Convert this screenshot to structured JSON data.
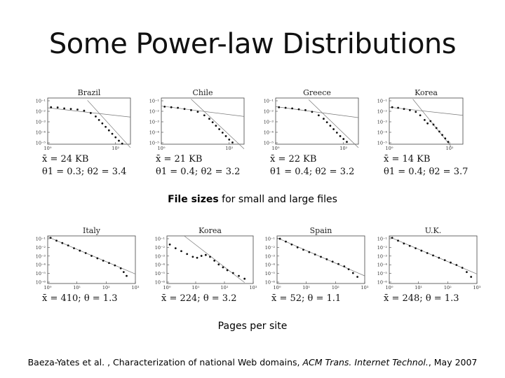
{
  "slide": {
    "title": "Some Power-law Distributions",
    "caption_top_bold": "File sizes",
    "caption_top_rest": " for small and large files",
    "caption_bottom": "Pages per site",
    "citation": {
      "authors": "Baeza-Yates et al. , Characterization of national Web domains, ",
      "journal": "ACM Trans. Internet Technol.",
      "date": ", May 2007"
    }
  },
  "chart_data": [
    {
      "type": "scatter",
      "scale": "log-log",
      "title": "Brazil",
      "stat_line1": "x̄ = 24 KB",
      "stat_line2": "θ1 = 0.3; θ2 = 3.4",
      "xticks": [
        "10⁰",
        "10²"
      ],
      "yticks": [
        "10⁻¹",
        "10⁻²",
        "10⁻³",
        "10⁻⁴",
        "10⁻⁵"
      ],
      "xlim": [
        0,
        2.5
      ],
      "ylim": [
        -5,
        -1
      ],
      "fit_lines": [
        {
          "x0": 0,
          "y0": -1.85,
          "x1": 2.5,
          "y1": -2.65
        },
        {
          "x0": 1.2,
          "y0": -1.2,
          "x1": 2.5,
          "y1": -5.3
        }
      ],
      "points": [
        [
          0.1,
          -1.8
        ],
        [
          0.3,
          -1.82
        ],
        [
          0.5,
          -1.9
        ],
        [
          0.7,
          -1.95
        ],
        [
          0.9,
          -2.0
        ],
        [
          1.1,
          -2.1
        ],
        [
          1.3,
          -2.3
        ],
        [
          1.45,
          -2.6
        ],
        [
          1.55,
          -2.9
        ],
        [
          1.65,
          -3.2
        ],
        [
          1.75,
          -3.5
        ],
        [
          1.85,
          -3.8
        ],
        [
          1.95,
          -4.1
        ],
        [
          2.05,
          -4.4
        ],
        [
          2.15,
          -4.7
        ],
        [
          2.25,
          -4.95
        ]
      ]
    },
    {
      "type": "scatter",
      "scale": "log-log",
      "title": "Chile",
      "stat_line1": "x̄ = 21 KB",
      "stat_line2": "θ1 = 0.4; θ2 = 3.2",
      "xticks": [
        "10⁰",
        "10²"
      ],
      "yticks": [
        "10⁻¹",
        "10⁻²",
        "10⁻³",
        "10⁻⁴",
        "10⁻⁵"
      ],
      "xlim": [
        0,
        2.5
      ],
      "ylim": [
        -5,
        -1
      ],
      "fit_lines": [
        {
          "x0": 0,
          "y0": -1.7,
          "x1": 2.5,
          "y1": -2.6
        },
        {
          "x0": 0.9,
          "y0": -1.1,
          "x1": 2.5,
          "y1": -5.4
        }
      ],
      "points": [
        [
          0.1,
          -1.75
        ],
        [
          0.3,
          -1.8
        ],
        [
          0.5,
          -1.85
        ],
        [
          0.7,
          -1.95
        ],
        [
          0.9,
          -2.05
        ],
        [
          1.1,
          -2.2
        ],
        [
          1.3,
          -2.5
        ],
        [
          1.45,
          -2.8
        ],
        [
          1.55,
          -3.1
        ],
        [
          1.65,
          -3.4
        ],
        [
          1.75,
          -3.7
        ],
        [
          1.85,
          -4.0
        ],
        [
          1.95,
          -4.3
        ],
        [
          2.05,
          -4.6
        ],
        [
          2.15,
          -4.85
        ]
      ]
    },
    {
      "type": "scatter",
      "scale": "log-log",
      "title": "Greece",
      "stat_line1": "x̄ = 22 KB",
      "stat_line2": "θ1 = 0.4; θ2 = 3.2",
      "xticks": [
        "10⁰",
        "10²"
      ],
      "yticks": [
        "10⁻¹",
        "10⁻²",
        "10⁻³",
        "10⁻⁴",
        "10⁻⁵"
      ],
      "xlim": [
        0,
        2.5
      ],
      "ylim": [
        -5,
        -1
      ],
      "fit_lines": [
        {
          "x0": 0,
          "y0": -1.75,
          "x1": 2.5,
          "y1": -2.7
        },
        {
          "x0": 1.0,
          "y0": -1.15,
          "x1": 2.5,
          "y1": -5.3
        }
      ],
      "points": [
        [
          0.1,
          -1.8
        ],
        [
          0.3,
          -1.85
        ],
        [
          0.5,
          -1.9
        ],
        [
          0.7,
          -1.98
        ],
        [
          0.9,
          -2.05
        ],
        [
          1.1,
          -2.2
        ],
        [
          1.3,
          -2.5
        ],
        [
          1.45,
          -2.8
        ],
        [
          1.55,
          -3.1
        ],
        [
          1.65,
          -3.4
        ],
        [
          1.75,
          -3.7
        ],
        [
          1.85,
          -4.0
        ],
        [
          1.95,
          -4.3
        ],
        [
          2.05,
          -4.55
        ],
        [
          2.15,
          -4.8
        ]
      ]
    },
    {
      "type": "scatter",
      "scale": "log-log",
      "title": "Korea",
      "stat_line1": "x̄ = 14 KB",
      "stat_line2": "θ1 = 0.4; θ2 = 3.7",
      "xticks": [
        "10⁰",
        "10²"
      ],
      "yticks": [
        "10⁻¹",
        "10⁻²",
        "10⁻³",
        "10⁻⁴",
        "10⁻⁵"
      ],
      "xlim": [
        0,
        2.5
      ],
      "ylim": [
        -5,
        -1
      ],
      "fit_lines": [
        {
          "x0": 0,
          "y0": -1.8,
          "x1": 2.5,
          "y1": -2.5
        },
        {
          "x0": 0.8,
          "y0": -1.1,
          "x1": 2.1,
          "y1": -5.2
        }
      ],
      "points": [
        [
          0.1,
          -1.8
        ],
        [
          0.3,
          -1.85
        ],
        [
          0.5,
          -1.95
        ],
        [
          0.7,
          -2.05
        ],
        [
          0.9,
          -2.2
        ],
        [
          1.05,
          -2.5
        ],
        [
          1.2,
          -2.9
        ],
        [
          1.3,
          -3.2
        ],
        [
          1.4,
          -3.0
        ],
        [
          1.5,
          -3.3
        ],
        [
          1.6,
          -3.6
        ],
        [
          1.7,
          -3.9
        ],
        [
          1.8,
          -4.2
        ],
        [
          1.9,
          -4.5
        ],
        [
          2.0,
          -4.8
        ]
      ]
    },
    {
      "type": "scatter",
      "scale": "log-log",
      "title": "Italy",
      "stat_line1": "x̄ = 410; θ = 1.3",
      "xticks": [
        "10⁰",
        "10¹",
        "10²",
        "10³"
      ],
      "yticks": [
        "10⁻¹",
        "10⁻²",
        "10⁻³",
        "10⁻⁴",
        "10⁻⁵",
        "10⁻⁶"
      ],
      "xlim": [
        0,
        3
      ],
      "ylim": [
        -6,
        -1
      ],
      "fit_lines": [
        {
          "x0": 0,
          "y0": -1.1,
          "x1": 3,
          "y1": -5.0
        }
      ],
      "points": [
        [
          0.1,
          -1.2
        ],
        [
          0.3,
          -1.5
        ],
        [
          0.5,
          -1.75
        ],
        [
          0.7,
          -2.0
        ],
        [
          0.9,
          -2.3
        ],
        [
          1.1,
          -2.55
        ],
        [
          1.3,
          -2.8
        ],
        [
          1.5,
          -3.1
        ],
        [
          1.7,
          -3.35
        ],
        [
          1.9,
          -3.6
        ],
        [
          2.1,
          -3.85
        ],
        [
          2.3,
          -4.1
        ],
        [
          2.5,
          -4.4
        ],
        [
          2.6,
          -4.8
        ],
        [
          2.7,
          -5.2
        ]
      ]
    },
    {
      "type": "scatter",
      "scale": "log-log",
      "title": "Korea",
      "stat_line1": "x̄ = 224; θ = 3.2",
      "xticks": [
        "10⁰",
        "10¹",
        "10²",
        "10³"
      ],
      "yticks": [
        "10⁻¹",
        "10⁻²",
        "10⁻³",
        "10⁻⁴",
        "10⁻⁵",
        "10⁻⁶"
      ],
      "xlim": [
        0,
        3
      ],
      "ylim": [
        -6,
        -1
      ],
      "fit_lines": [
        {
          "x0": 0.6,
          "y0": -1.0,
          "x1": 2.7,
          "y1": -5.9
        }
      ],
      "points": [
        [
          0.1,
          -1.9
        ],
        [
          0.3,
          -2.3
        ],
        [
          0.5,
          -2.6
        ],
        [
          0.7,
          -2.9
        ],
        [
          0.9,
          -3.2
        ],
        [
          1.05,
          -3.3
        ],
        [
          1.2,
          -3.1
        ],
        [
          1.35,
          -3.0
        ],
        [
          1.5,
          -3.2
        ],
        [
          1.65,
          -3.6
        ],
        [
          1.8,
          -4.0
        ],
        [
          1.95,
          -4.3
        ],
        [
          2.1,
          -4.6
        ],
        [
          2.3,
          -4.9
        ],
        [
          2.5,
          -5.2
        ],
        [
          2.7,
          -5.5
        ]
      ]
    },
    {
      "type": "scatter",
      "scale": "log-log",
      "title": "Spain",
      "stat_line1": "x̄ = 52; θ = 1.1",
      "xticks": [
        "10⁰",
        "10¹",
        "10²",
        "10³"
      ],
      "yticks": [
        "10⁻¹",
        "10⁻²",
        "10⁻³",
        "10⁻⁴",
        "10⁻⁵",
        "10⁻⁶"
      ],
      "xlim": [
        0,
        3
      ],
      "ylim": [
        -6,
        -1
      ],
      "fit_lines": [
        {
          "x0": 0,
          "y0": -1.2,
          "x1": 3,
          "y1": -5.2
        }
      ],
      "points": [
        [
          0.1,
          -1.3
        ],
        [
          0.3,
          -1.6
        ],
        [
          0.5,
          -1.9
        ],
        [
          0.7,
          -2.2
        ],
        [
          0.9,
          -2.45
        ],
        [
          1.1,
          -2.7
        ],
        [
          1.3,
          -2.95
        ],
        [
          1.5,
          -3.2
        ],
        [
          1.7,
          -3.45
        ],
        [
          1.9,
          -3.7
        ],
        [
          2.1,
          -3.95
        ],
        [
          2.3,
          -4.2
        ],
        [
          2.45,
          -4.5
        ],
        [
          2.6,
          -4.9
        ],
        [
          2.75,
          -5.3
        ]
      ]
    },
    {
      "type": "scatter",
      "scale": "log-log",
      "title": "U.K.",
      "stat_line1": "x̄ = 248; θ = 1.3",
      "xticks": [
        "10⁰",
        "10¹",
        "10²",
        "10³"
      ],
      "yticks": [
        "10⁻¹",
        "10⁻²",
        "10⁻³",
        "10⁻⁴",
        "10⁻⁵",
        "10⁻⁶"
      ],
      "xlim": [
        0,
        3
      ],
      "ylim": [
        -6,
        -1
      ],
      "fit_lines": [
        {
          "x0": 0,
          "y0": -1.1,
          "x1": 3,
          "y1": -5.0
        }
      ],
      "points": [
        [
          0.1,
          -1.2
        ],
        [
          0.3,
          -1.5
        ],
        [
          0.5,
          -1.8
        ],
        [
          0.7,
          -2.05
        ],
        [
          0.9,
          -2.3
        ],
        [
          1.1,
          -2.55
        ],
        [
          1.3,
          -2.8
        ],
        [
          1.5,
          -3.05
        ],
        [
          1.7,
          -3.3
        ],
        [
          1.9,
          -3.55
        ],
        [
          2.1,
          -3.8
        ],
        [
          2.3,
          -4.05
        ],
        [
          2.5,
          -4.35
        ],
        [
          2.65,
          -4.8
        ],
        [
          2.8,
          -5.3
        ]
      ]
    }
  ]
}
